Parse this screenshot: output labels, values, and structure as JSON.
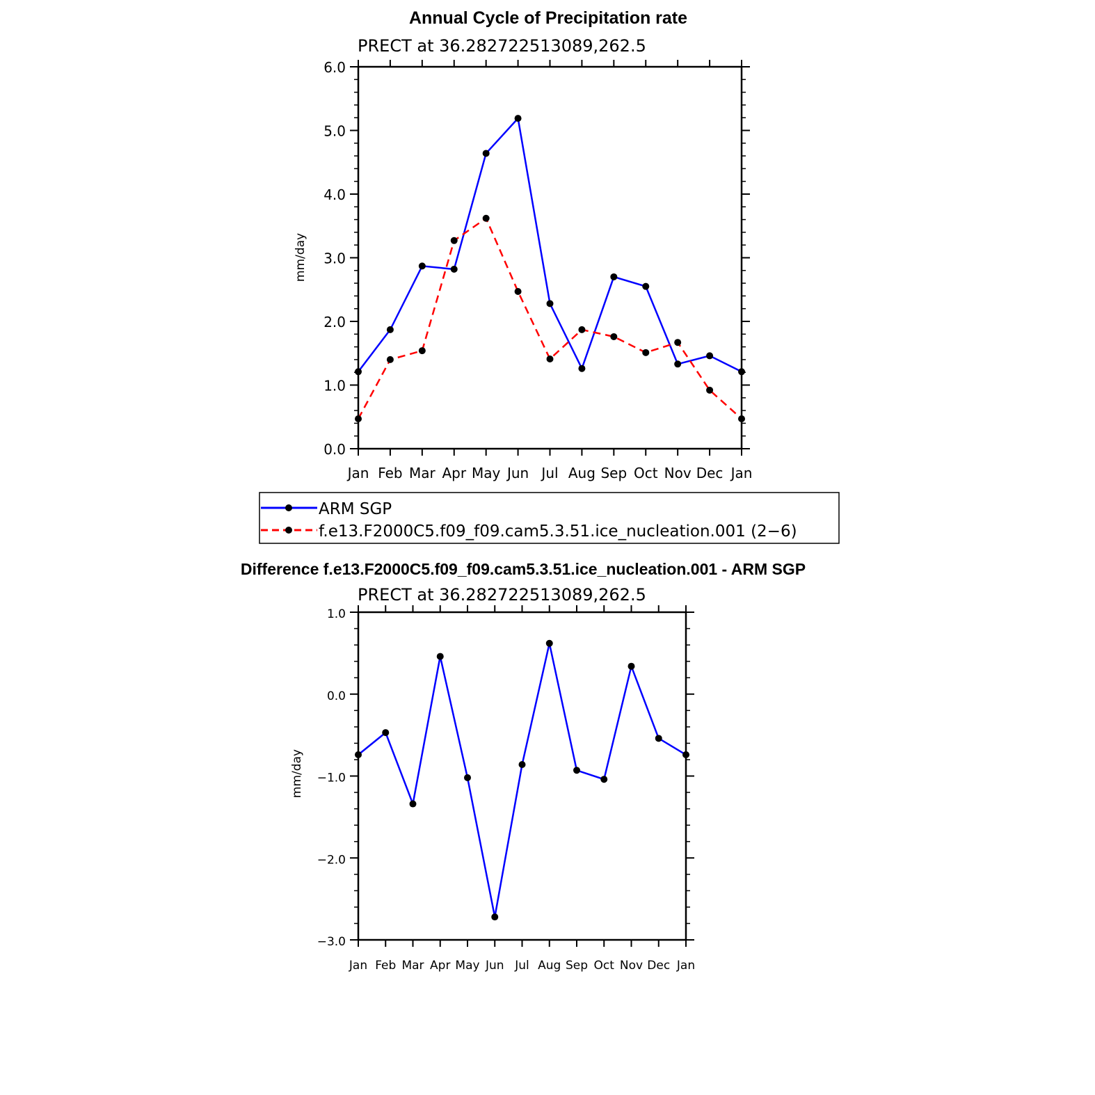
{
  "colors": {
    "arm": "#0000ff",
    "model": "#ff0000",
    "marker": "#000000",
    "axis": "#000000"
  },
  "chart_data": [
    {
      "type": "line",
      "title": "Annual Cycle of Precipitation rate",
      "subtitle": "PRECT at 36.282722513089,262.5",
      "xlabel": "",
      "ylabel": "mm/day",
      "categories": [
        "Jan",
        "Feb",
        "Mar",
        "Apr",
        "May",
        "Jun",
        "Jul",
        "Aug",
        "Sep",
        "Oct",
        "Nov",
        "Dec",
        "Jan"
      ],
      "ylim": [
        0,
        6
      ],
      "yticks": [
        "0.0",
        "1.0",
        "2.0",
        "3.0",
        "4.0",
        "5.0",
        "6.0"
      ],
      "grid": false,
      "legend_position": "below",
      "series": [
        {
          "name": "ARM SGP",
          "style": "solid",
          "color": "#0000ff",
          "values": [
            1.21,
            1.87,
            2.87,
            2.82,
            4.64,
            5.19,
            2.28,
            1.26,
            2.7,
            2.55,
            1.33,
            1.46,
            1.21
          ]
        },
        {
          "name": "f.e13.F2000C5.f09_f09.cam5.3.51.ice_nucleation.001 (2−6)",
          "style": "dashed",
          "color": "#ff0000",
          "values": [
            0.47,
            1.4,
            1.54,
            3.27,
            3.62,
            2.47,
            1.41,
            1.87,
            1.76,
            1.51,
            1.67,
            0.92,
            0.47
          ]
        }
      ]
    },
    {
      "type": "line",
      "title": "Difference f.e13.F2000C5.f09_f09.cam5.3.51.ice_nucleation.001 - ARM SGP",
      "subtitle": "PRECT at 36.282722513089,262.5",
      "xlabel": "",
      "ylabel": "mm/day",
      "categories": [
        "Jan",
        "Feb",
        "Mar",
        "Apr",
        "May",
        "Jun",
        "Jul",
        "Aug",
        "Sep",
        "Oct",
        "Nov",
        "Dec",
        "Jan"
      ],
      "ylim": [
        -3,
        1
      ],
      "yticks": [
        "−3.0",
        "−2.0",
        "−1.0",
        "0.0",
        "1.0"
      ],
      "grid": false,
      "series": [
        {
          "style": "solid",
          "color": "#0000ff",
          "values": [
            -0.74,
            -0.47,
            -1.34,
            0.46,
            -1.02,
            -2.72,
            -0.86,
            0.62,
            -0.93,
            -1.04,
            0.34,
            -0.54,
            -0.74
          ]
        }
      ]
    }
  ]
}
